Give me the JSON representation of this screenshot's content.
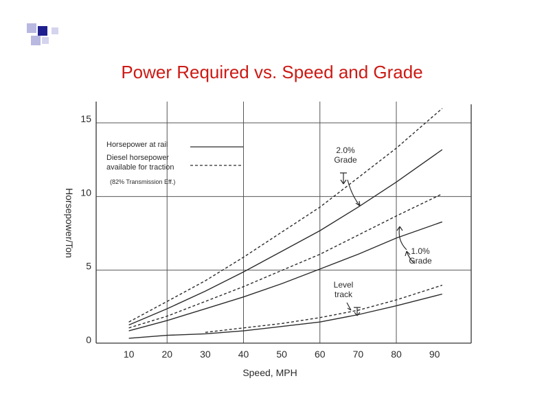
{
  "title": "Power Required vs. Speed and Grade",
  "colors": {
    "title": "#cc1a14",
    "bullet_dark": "#1f1f8f",
    "bullet_light": "#b8b8e0",
    "ink": "#2a2a2a"
  },
  "chart_data": {
    "type": "line",
    "xlabel": "Speed, MPH",
    "ylabel": "Horsepower/Ton",
    "xlim": [
      0,
      100
    ],
    "ylim": [
      0,
      15
    ],
    "xticks": [
      10,
      20,
      30,
      40,
      50,
      60,
      70,
      80,
      90
    ],
    "yticks": [
      0,
      5,
      10,
      15
    ],
    "grid": true,
    "legend": {
      "position": "top-left",
      "entries": [
        {
          "label": "Horsepower at rail",
          "style": "solid"
        },
        {
          "label": "Diesel horsepower\navailable for traction",
          "style": "dashed"
        },
        {
          "label": "(82% Transmission Eff.)",
          "style": "none"
        }
      ]
    },
    "series": [
      {
        "group": "2.0% Grade",
        "style": "solid",
        "x": [
          10,
          20,
          30,
          40,
          50,
          60,
          70,
          80,
          92
        ],
        "y": [
          1.0,
          2.1,
          3.3,
          4.6,
          6.0,
          7.4,
          9.0,
          10.7,
          12.9
        ]
      },
      {
        "group": "2.0% Grade",
        "style": "dashed",
        "x": [
          10,
          20,
          30,
          40,
          50,
          60,
          70,
          80,
          92
        ],
        "y": [
          1.2,
          2.6,
          4.0,
          5.6,
          7.3,
          9.0,
          11.0,
          13.0,
          15.7
        ]
      },
      {
        "group": "1.0% Grade",
        "style": "solid",
        "x": [
          10,
          20,
          30,
          40,
          50,
          60,
          70,
          80,
          92
        ],
        "y": [
          0.6,
          1.3,
          2.1,
          2.9,
          3.8,
          4.8,
          5.8,
          6.9,
          8.0
        ]
      },
      {
        "group": "1.0% Grade",
        "style": "dashed",
        "x": [
          10,
          20,
          30,
          40,
          50,
          60,
          70,
          80,
          92
        ],
        "y": [
          0.8,
          1.6,
          2.6,
          3.6,
          4.7,
          5.8,
          7.1,
          8.4,
          9.9
        ]
      },
      {
        "group": "Level track",
        "style": "solid",
        "x": [
          10,
          20,
          30,
          40,
          50,
          60,
          70,
          80,
          92
        ],
        "y": [
          0.1,
          0.3,
          0.4,
          0.6,
          0.9,
          1.2,
          1.7,
          2.3,
          3.1
        ]
      },
      {
        "group": "Level track",
        "style": "dashed",
        "x": [
          30,
          40,
          50,
          60,
          70,
          80,
          92
        ],
        "y": [
          0.5,
          0.8,
          1.1,
          1.5,
          2.0,
          2.7,
          3.7
        ]
      }
    ],
    "annotations": [
      {
        "text": "2.0%\nGrade"
      },
      {
        "text": "1.0%\nGrade"
      },
      {
        "text": "Level\ntrack"
      }
    ]
  }
}
